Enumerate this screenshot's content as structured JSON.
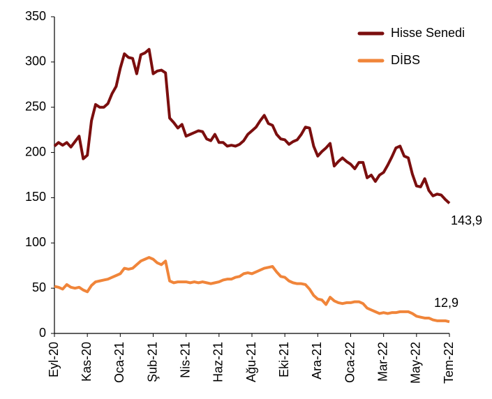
{
  "chart_data": {
    "type": "line",
    "categories": [
      "Eyl-20",
      null,
      null,
      null,
      null,
      null,
      null,
      null,
      "Kas-20",
      null,
      null,
      null,
      null,
      null,
      null,
      null,
      "Oca-21",
      null,
      null,
      null,
      null,
      null,
      null,
      null,
      "Şub-21",
      null,
      null,
      null,
      null,
      null,
      null,
      null,
      "Nis-21",
      null,
      null,
      null,
      null,
      null,
      null,
      null,
      "Haz-21",
      null,
      null,
      null,
      null,
      null,
      null,
      null,
      "Ağu-21",
      null,
      null,
      null,
      null,
      null,
      null,
      null,
      "Eki-21",
      null,
      null,
      null,
      null,
      null,
      null,
      null,
      "Ara-21",
      null,
      null,
      null,
      null,
      null,
      null,
      null,
      "Oca-22",
      null,
      null,
      null,
      null,
      null,
      null,
      null,
      "Mar-22",
      null,
      null,
      null,
      null,
      null,
      null,
      null,
      "May-22",
      null,
      null,
      null,
      null,
      null,
      null,
      null,
      "Tem-22"
    ],
    "series": [
      {
        "name": "Hisse Senedi",
        "color": "#7b0e0e",
        "values": [
          207,
          211,
          208,
          211,
          206,
          212,
          218,
          193,
          197,
          235,
          253,
          250,
          250,
          254,
          265,
          273,
          293,
          309,
          305,
          304,
          287,
          308,
          310,
          314,
          287,
          290,
          291,
          288,
          238,
          233,
          227,
          231,
          218,
          220,
          222,
          224,
          223,
          215,
          213,
          220,
          211,
          211,
          207,
          208,
          207,
          209,
          213,
          220,
          224,
          228,
          235,
          241,
          232,
          230,
          220,
          215,
          214,
          209,
          212,
          214,
          220,
          228,
          227,
          207,
          196,
          201,
          205,
          210,
          185,
          190,
          194,
          190,
          187,
          182,
          189,
          189,
          172,
          175,
          168,
          175,
          178,
          186,
          195,
          205,
          207,
          196,
          194,
          176,
          163,
          162,
          171,
          158,
          152,
          154,
          153,
          148,
          143.9
        ],
        "value_labels": [
          null,
          null,
          null,
          null,
          null,
          null,
          null,
          null,
          null,
          null,
          null,
          null,
          null,
          null,
          null,
          null,
          null,
          null,
          null,
          null,
          null,
          null,
          null,
          null,
          null,
          null,
          null,
          null,
          null,
          null,
          null,
          null,
          null,
          null,
          null,
          null,
          null,
          null,
          null,
          null,
          null,
          null,
          null,
          null,
          null,
          null,
          null,
          null,
          null,
          null,
          null,
          null,
          null,
          null,
          null,
          null,
          null,
          null,
          null,
          null,
          null,
          null,
          null,
          null,
          null,
          null,
          null,
          null,
          null,
          null,
          null,
          null,
          null,
          null,
          null,
          null,
          null,
          null,
          null,
          null,
          null,
          null,
          null,
          null,
          null,
          null,
          null,
          null,
          null,
          null,
          null,
          null,
          null,
          null,
          null,
          null,
          "143,9"
        ]
      },
      {
        "name": "DİBS",
        "color": "#f0853a",
        "values": [
          52,
          51,
          49,
          54,
          51,
          50,
          51,
          48,
          46,
          53,
          57,
          58,
          59,
          60,
          62,
          64,
          66,
          72,
          71,
          72,
          76,
          80,
          82,
          84,
          82,
          78,
          76,
          80,
          58,
          56,
          57,
          57,
          57,
          56,
          57,
          56,
          57,
          56,
          55,
          56,
          57,
          59,
          60,
          60,
          62,
          63,
          66,
          67,
          66,
          68,
          70,
          72,
          73,
          74,
          68,
          63,
          62,
          58,
          56,
          55,
          55,
          54,
          49,
          42,
          38,
          37,
          32,
          40,
          36,
          34,
          33,
          34,
          34,
          35,
          35,
          33,
          28,
          26,
          24,
          22,
          23,
          22,
          23,
          23,
          24,
          24,
          24,
          22,
          19,
          18,
          17,
          17,
          15,
          14,
          14,
          14,
          12.9
        ],
        "value_labels": [
          null,
          null,
          null,
          null,
          null,
          null,
          null,
          null,
          null,
          null,
          null,
          null,
          null,
          null,
          null,
          null,
          null,
          null,
          null,
          null,
          null,
          null,
          null,
          null,
          null,
          null,
          null,
          null,
          null,
          null,
          null,
          null,
          null,
          null,
          null,
          null,
          null,
          null,
          null,
          null,
          null,
          null,
          null,
          null,
          null,
          null,
          null,
          null,
          null,
          null,
          null,
          null,
          null,
          null,
          null,
          null,
          null,
          null,
          null,
          null,
          null,
          null,
          null,
          null,
          null,
          null,
          null,
          null,
          null,
          null,
          null,
          null,
          null,
          null,
          null,
          null,
          null,
          null,
          null,
          null,
          null,
          null,
          null,
          null,
          null,
          null,
          null,
          null,
          null,
          null,
          null,
          null,
          null,
          null,
          null,
          null,
          "12,9"
        ]
      }
    ],
    "ylim": [
      0,
      350
    ],
    "yticks": [
      0,
      50,
      100,
      150,
      200,
      250,
      300,
      350
    ],
    "grid": false,
    "legend": "top-right"
  }
}
